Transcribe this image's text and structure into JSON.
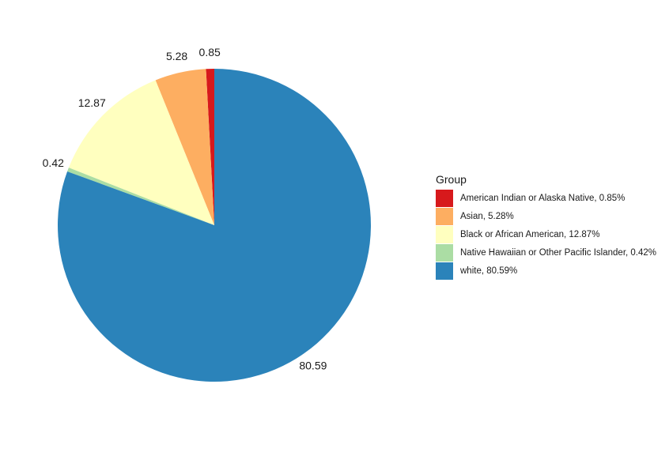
{
  "chart_data": {
    "type": "pie",
    "legend_title": "Group",
    "legend_position": "right",
    "start": "12 o'clock",
    "direction": "counterclockwise",
    "slices": [
      {
        "label": "American Indian or Alaska Native",
        "value": 0.85,
        "value_label": "0.85",
        "legend_label": "American Indian or Alaska Native, 0.85%",
        "color": "#D7191C"
      },
      {
        "label": "Asian",
        "value": 5.28,
        "value_label": "5.28",
        "legend_label": "Asian, 5.28%",
        "color": "#FDAE61"
      },
      {
        "label": "Black or African American",
        "value": 12.87,
        "value_label": "12.87",
        "legend_label": "Black or African American, 12.87%",
        "color": "#FFFFBF"
      },
      {
        "label": "Native Hawaiian or Other Pacific Islander",
        "value": 0.42,
        "value_label": "0.42",
        "legend_label": "Native Hawaiian or Other Pacific Islander, 0.42%",
        "color": "#ABDDA4"
      },
      {
        "label": "white",
        "value": 80.59,
        "value_label": "80.59",
        "legend_label": "white, 80.59%",
        "color": "#2B83BA"
      }
    ]
  }
}
